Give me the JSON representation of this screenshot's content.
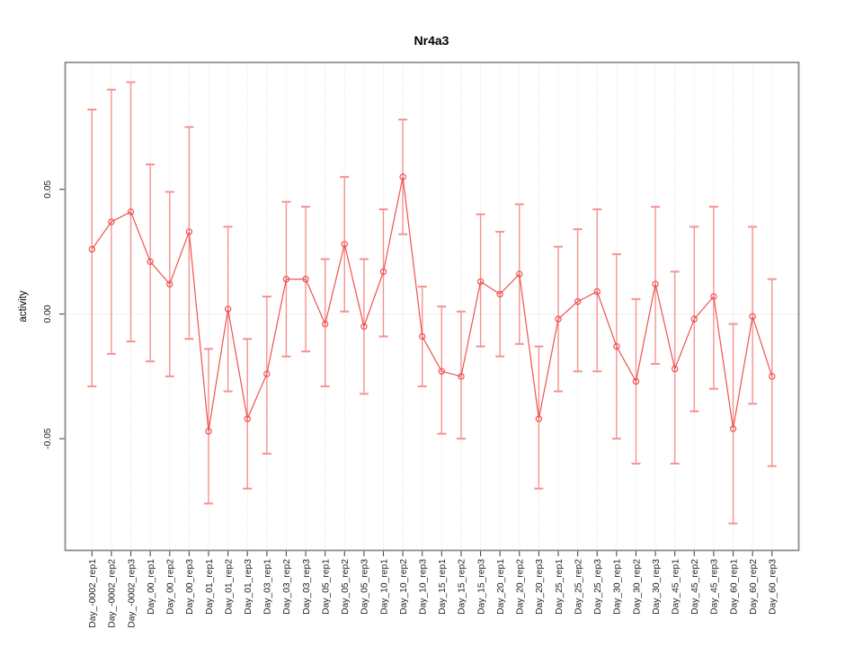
{
  "chart_data": {
    "type": "line",
    "title": "Nr4a3",
    "xlabel": "",
    "ylabel": "activity",
    "legend": "none",
    "grid": "vertical dotted gridlines at every category; dotted horizontal line at y=0",
    "ylim": [
      -0.0948,
      0.1009
    ],
    "yticks": [
      {
        "label": "0.05",
        "value": 0.05
      },
      {
        "label": "0.00",
        "value": 0.0
      },
      {
        "label": "-0.05",
        "value": -0.05
      }
    ],
    "categories": [
      "Day_-0002_rep1",
      "Day_-0002_rep2",
      "Day_-0002_rep3",
      "Day_00_rep1",
      "Day_00_rep2",
      "Day_00_rep3",
      "Day_01_rep1",
      "Day_01_rep2",
      "Day_01_rep3",
      "Day_03_rep1",
      "Day_03_rep2",
      "Day_03_rep3",
      "Day_05_rep1",
      "Day_05_rep2",
      "Day_05_rep3",
      "Day_10_rep1",
      "Day_10_rep2",
      "Day_10_rep3",
      "Day_15_rep1",
      "Day_15_rep2",
      "Day_15_rep3",
      "Day_20_rep1",
      "Day_20_rep2",
      "Day_20_rep3",
      "Day_25_rep1",
      "Day_25_rep2",
      "Day_25_rep3",
      "Day_30_rep1",
      "Day_30_rep2",
      "Day_30_rep3",
      "Day_45_rep1",
      "Day_45_rep2",
      "Day_45_rep3",
      "Day_60_rep1",
      "Day_60_rep2",
      "Day_60_rep3"
    ],
    "series": [
      {
        "name": "activity",
        "marker": "open-circle",
        "values": [
          0.026,
          0.037,
          0.041,
          0.021,
          0.012,
          0.033,
          -0.047,
          0.002,
          -0.042,
          -0.024,
          0.014,
          0.014,
          -0.004,
          0.028,
          -0.005,
          0.017,
          0.055,
          -0.009,
          -0.023,
          -0.025,
          0.013,
          0.008,
          0.016,
          -0.042,
          -0.002,
          0.005,
          0.009,
          -0.013,
          -0.027,
          0.012,
          -0.022,
          -0.002,
          0.007,
          -0.046,
          -0.001,
          -0.025
        ],
        "error_low": [
          -0.029,
          -0.016,
          -0.011,
          -0.019,
          -0.025,
          -0.01,
          -0.076,
          -0.031,
          -0.07,
          -0.056,
          -0.017,
          -0.015,
          -0.029,
          0.001,
          -0.032,
          -0.009,
          0.032,
          -0.029,
          -0.048,
          -0.05,
          -0.013,
          -0.017,
          -0.012,
          -0.07,
          -0.031,
          -0.023,
          -0.023,
          -0.05,
          -0.06,
          -0.02,
          -0.06,
          -0.039,
          -0.03,
          -0.084,
          -0.036,
          -0.061
        ],
        "error_high": [
          0.082,
          0.09,
          0.093,
          0.06,
          0.049,
          0.075,
          -0.014,
          0.035,
          -0.01,
          0.007,
          0.045,
          0.043,
          0.022,
          0.055,
          0.022,
          0.042,
          0.078,
          0.011,
          0.003,
          0.001,
          0.04,
          0.033,
          0.044,
          -0.013,
          0.027,
          0.034,
          0.042,
          0.024,
          0.006,
          0.043,
          0.017,
          0.035,
          0.043,
          -0.004,
          0.035,
          0.014
        ]
      }
    ],
    "colors": {
      "point_line": "#ee5250",
      "error_bar": "#f69191",
      "gridline": "#dadada",
      "zero_line": "#cfcfcf",
      "frame": "#8c8c8c",
      "tick": "#4a4a4a",
      "text": "#1c1c1c"
    }
  }
}
